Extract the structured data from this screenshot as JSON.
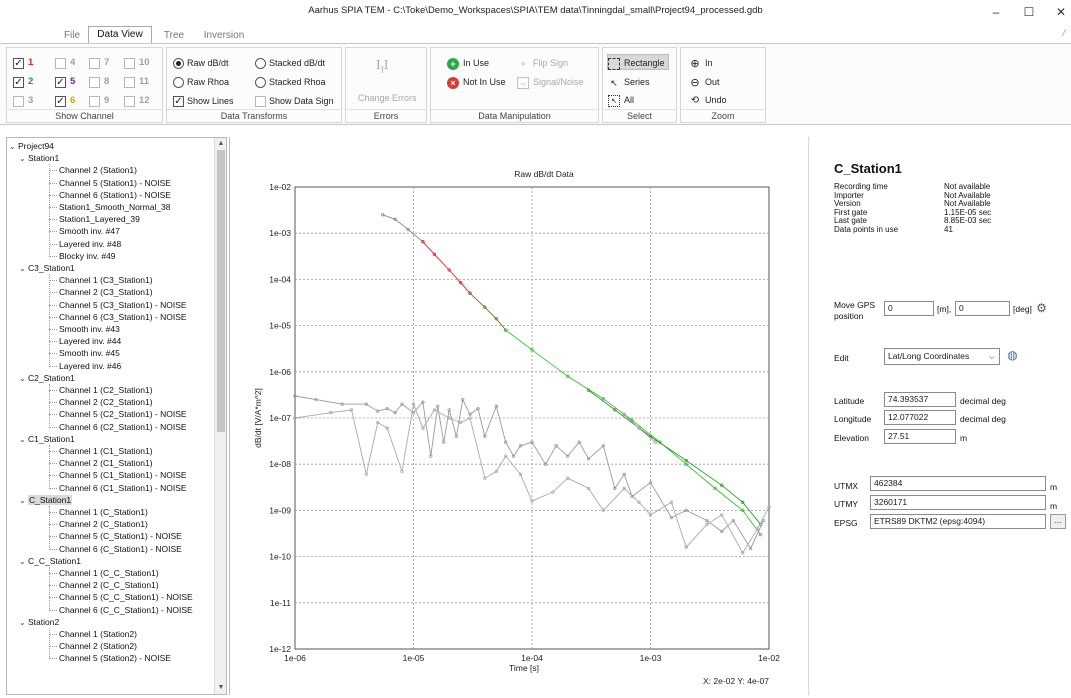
{
  "window": {
    "title": "Aarhus SPIA TEM - C:\\Toke\\Demo_Workspaces\\SPIA\\TEM data\\Tinningdal_small\\Project94_processed.gdb",
    "minimize": "–",
    "maximize": "☐",
    "close": "✕"
  },
  "tabs": [
    {
      "label": "File"
    },
    {
      "label": "Data View"
    },
    {
      "label": "Tree"
    },
    {
      "label": "Inversion"
    }
  ],
  "ribbon": {
    "show_channel": {
      "title": "Show Channel",
      "channels": [
        {
          "label": "1",
          "checked": true,
          "color": "#e02020"
        },
        {
          "label": "2",
          "checked": true,
          "color": "#20a020"
        },
        {
          "label": "3",
          "checked": false,
          "color": "#999999"
        },
        {
          "label": "4",
          "checked": false,
          "color": "#999999"
        },
        {
          "label": "5",
          "checked": true,
          "color": "#7a1fa0"
        },
        {
          "label": "6",
          "checked": true,
          "color": "#d8a000"
        },
        {
          "label": "7",
          "checked": false,
          "color": "#999999"
        },
        {
          "label": "8",
          "checked": false,
          "color": "#999999"
        },
        {
          "label": "9",
          "checked": false,
          "color": "#999999"
        },
        {
          "label": "10",
          "checked": false,
          "color": "#999999"
        },
        {
          "label": "11",
          "checked": false,
          "color": "#999999"
        },
        {
          "label": "12",
          "checked": false,
          "color": "#999999"
        }
      ]
    },
    "data_transforms": {
      "title": "Data Transforms",
      "raw_dbdt": "Raw dB/dt",
      "raw_rhoa": "Raw Rhoa",
      "show_lines": "Show Lines",
      "stacked_dbdt": "Stacked dB/dt",
      "stacked_rhoa": "Stacked Rhoa",
      "show_data_sign": "Show Data Sign"
    },
    "errors": {
      "title": "Errors",
      "change_errors": "Change Errors"
    },
    "data_manipulation": {
      "title": "Data Manipulation",
      "in_use": "In Use",
      "not_in_use": "Not In Use",
      "flip_sign": "Flip Sign",
      "signal_noise": "Signal/Noise"
    },
    "select": {
      "title": "Select",
      "rectangle": "Rectangle",
      "series": "Series",
      "all": "All"
    },
    "zoom": {
      "title": "Zoom",
      "in": "In",
      "out": "Out",
      "undo": "Undo"
    }
  },
  "tree": {
    "root": "Project94",
    "groups": [
      {
        "name": "Station1",
        "items": [
          "Channel 2 (Station1)",
          "Channel 5 (Station1) - NOISE",
          "Channel 6 (Station1) - NOISE",
          "Station1_Smooth_Normal_38",
          "Station1_Layered_39",
          "Smooth inv.  #47",
          "Layered inv.  #48",
          "Blocky inv.  #49"
        ]
      },
      {
        "name": "C3_Station1",
        "items": [
          "Channel 1 (C3_Station1)",
          "Channel 2 (C3_Station1)",
          "Channel 5 (C3_Station1) - NOISE",
          "Channel 6 (C3_Station1) - NOISE",
          "Smooth inv.  #43",
          "Layered inv.  #44",
          "Smooth inv.  #45",
          "Layered inv.  #46"
        ]
      },
      {
        "name": "C2_Station1",
        "items": [
          "Channel 1 (C2_Station1)",
          "Channel 2 (C2_Station1)",
          "Channel 5 (C2_Station1) - NOISE",
          "Channel 6 (C2_Station1) - NOISE"
        ]
      },
      {
        "name": "C1_Station1",
        "items": [
          "Channel 1 (C1_Station1)",
          "Channel 2 (C1_Station1)",
          "Channel 5 (C1_Station1) - NOISE",
          "Channel 6 (C1_Station1) - NOISE"
        ]
      },
      {
        "name": "C_Station1",
        "selected": true,
        "items": [
          "Channel 1 (C_Station1)",
          "Channel 2 (C_Station1)",
          "Channel 5 (C_Station1) - NOISE",
          "Channel 6 (C_Station1) - NOISE"
        ]
      },
      {
        "name": "C_C_Station1",
        "items": [
          "Channel 1 (C_C_Station1)",
          "Channel 2 (C_C_Station1)",
          "Channel 5 (C_C_Station1) - NOISE",
          "Channel 6 (C_C_Station1) - NOISE"
        ]
      },
      {
        "name": "Station2",
        "items": [
          "Channel 1 (Station2)",
          "Channel 2 (Station2)",
          "Channel 5 (Station2) - NOISE"
        ]
      }
    ]
  },
  "chart_data": {
    "type": "line",
    "title": "Raw dB/dt Data",
    "xlabel": "Time [s]",
    "ylabel": "dB/dt [V/A*m^2]",
    "xscale": "log",
    "yscale": "log",
    "xlim": [
      1e-06,
      0.01
    ],
    "ylim": [
      1e-12,
      0.01
    ],
    "x_ticks": [
      "1e-06",
      "1e-05",
      "1e-04",
      "1e-03",
      "1e-02"
    ],
    "y_ticks": [
      "1e-12",
      "1e-11",
      "1e-10",
      "1e-09",
      "1e-08",
      "1e-07",
      "1e-06",
      "1e-05",
      "1e-04",
      "1e-03",
      "1e-02"
    ],
    "grid": true,
    "cursor_readout": "X: 2e-02 Y: 4e-07",
    "series": [
      {
        "color": "#888888",
        "points": [
          [
            5.5e-06,
            0.0025
          ],
          [
            7e-06,
            0.002
          ],
          [
            9e-06,
            0.0012
          ],
          [
            1.2e-05,
            0.00065
          ]
        ]
      },
      {
        "color": "#e02020",
        "points": [
          [
            1.2e-05,
            0.00065
          ],
          [
            1.5e-05,
            0.00035
          ],
          [
            2e-05,
            0.00016
          ],
          [
            2.5e-05,
            8.5e-05
          ],
          [
            3e-05,
            5e-05
          ]
        ]
      },
      {
        "color": "#7a6a2a",
        "points": [
          [
            3e-05,
            5e-05
          ],
          [
            4e-05,
            2.5e-05
          ],
          [
            5e-05,
            1.4e-05
          ],
          [
            6e-05,
            8e-06
          ]
        ]
      },
      {
        "color": "#30c030",
        "points": [
          [
            6e-05,
            8e-06
          ],
          [
            0.0001,
            3e-06
          ],
          [
            0.0002,
            8e-07
          ],
          [
            0.0004,
            2.6e-07
          ],
          [
            0.0007,
            9e-08
          ],
          [
            0.0012,
            3e-08
          ],
          [
            0.002,
            1e-08
          ],
          [
            0.0035,
            3e-09
          ],
          [
            0.006,
            1e-09
          ],
          [
            0.0085,
            3e-10
          ]
        ]
      },
      {
        "color": "#2a9a2a",
        "points": [
          [
            0.0003,
            4e-07
          ],
          [
            0.0005,
            1.5e-07
          ],
          [
            0.001,
            4e-08
          ],
          [
            0.002,
            1.2e-08
          ],
          [
            0.004,
            3.5e-09
          ],
          [
            0.006,
            1.5e-09
          ],
          [
            0.0085,
            5e-10
          ]
        ]
      },
      {
        "color": "#999999",
        "points": [
          [
            0.0004,
            2.6e-07
          ],
          [
            0.0006,
            1.2e-07
          ],
          [
            0.0008,
            6e-08
          ],
          [
            0.0011,
            3e-08
          ]
        ]
      },
      {
        "color": "#9a9a9a",
        "points": [
          [
            1e-06,
            3e-07
          ],
          [
            1.5e-06,
            2.5e-07
          ],
          [
            2.5e-06,
            2e-07
          ],
          [
            4e-06,
            2e-07
          ],
          [
            5e-06,
            1.4e-07
          ],
          [
            6e-06,
            1.6e-07
          ],
          [
            7e-06,
            1.3e-07
          ],
          [
            8e-06,
            2e-07
          ],
          [
            1e-05,
            1.3e-07
          ],
          [
            1.2e-05,
            2.2e-07
          ],
          [
            1.4e-05,
            1.5e-08
          ],
          [
            1.6e-05,
            1.8e-07
          ],
          [
            1.8e-05,
            3e-08
          ],
          [
            2e-05,
            1.5e-07
          ],
          [
            2.3e-05,
            4e-08
          ],
          [
            2.6e-05,
            2.5e-07
          ],
          [
            3e-05,
            1.2e-07
          ],
          [
            3.5e-05,
            1.6e-07
          ],
          [
            4e-05,
            4e-08
          ],
          [
            5e-05,
            1.8e-07
          ],
          [
            6e-05,
            3e-08
          ],
          [
            7e-05,
            1.5e-08
          ],
          [
            8e-05,
            2.5e-08
          ],
          [
            0.0001,
            3e-08
          ],
          [
            0.00013,
            1e-08
          ],
          [
            0.00016,
            2.5e-08
          ],
          [
            0.0002,
            1.5e-08
          ],
          [
            0.00025,
            3e-08
          ],
          [
            0.0003,
            1.3e-08
          ],
          [
            0.0004,
            2.5e-08
          ],
          [
            0.0005,
            3e-09
          ],
          [
            0.0006,
            6e-09
          ],
          [
            0.0007,
            2e-09
          ],
          [
            0.001,
            4e-09
          ],
          [
            0.0015,
            7e-10
          ],
          [
            0.002,
            1e-09
          ],
          [
            0.003,
            6e-10
          ],
          [
            0.004,
            3.5e-10
          ],
          [
            0.005,
            6e-10
          ],
          [
            0.007,
            1.5e-10
          ],
          [
            0.009,
            6e-10
          ]
        ]
      },
      {
        "color": "#aaaaaa",
        "points": [
          [
            1e-06,
            1e-07
          ],
          [
            2e-06,
            1.3e-07
          ],
          [
            3e-06,
            1.5e-07
          ],
          [
            4e-06,
            6e-09
          ],
          [
            5e-06,
            8e-08
          ],
          [
            6e-06,
            6e-08
          ],
          [
            8e-06,
            7e-09
          ],
          [
            1e-05,
            2e-07
          ],
          [
            1.2e-05,
            6e-08
          ],
          [
            1.5e-05,
            1.5e-07
          ],
          [
            2e-05,
            1e-07
          ],
          [
            2.5e-05,
            8e-08
          ],
          [
            3e-05,
            1e-07
          ],
          [
            4e-05,
            5e-09
          ],
          [
            5e-05,
            7e-09
          ],
          [
            6e-05,
            1.5e-08
          ],
          [
            8e-05,
            6e-09
          ],
          [
            0.0001,
            1.6e-09
          ],
          [
            0.00015,
            2.5e-09
          ],
          [
            0.0002,
            5e-09
          ],
          [
            0.0003,
            3e-09
          ],
          [
            0.0004,
            1e-09
          ],
          [
            0.0006,
            3e-09
          ],
          [
            0.0008,
            1.5e-09
          ],
          [
            0.001,
            8e-10
          ],
          [
            0.0015,
            1.5e-09
          ],
          [
            0.002,
            1.6e-10
          ],
          [
            0.003,
            5e-10
          ],
          [
            0.004,
            8e-10
          ],
          [
            0.006,
            1.2e-10
          ],
          [
            0.008,
            4e-10
          ],
          [
            0.01,
            1.2e-09
          ]
        ]
      }
    ]
  },
  "info": {
    "station_title": "C_Station1",
    "meta": [
      {
        "label": "Recording time",
        "value": "Not available"
      },
      {
        "label": "Importer",
        "value": "Not Available"
      },
      {
        "label": "Version",
        "value": "Not Available"
      },
      {
        "label": "First gate",
        "value": "1.15E-05 sec"
      },
      {
        "label": "Last gate",
        "value": "8.85E-03 sec"
      },
      {
        "label": "Data points in use",
        "value": "41"
      }
    ],
    "move_gps_label": "Move GPS",
    "move_gps_label2": "position",
    "gps_m_value": "0",
    "gps_m_unit": "[m],",
    "gps_deg_value": "0",
    "gps_deg_unit": "[deg]",
    "edit_label": "Edit",
    "edit_value": "Lat/Long Coordinates",
    "latitude_label": "Latitude",
    "latitude_value": "74.393537",
    "latitude_unit": "decimal deg",
    "longitude_label": "Longitude",
    "longitude_value": "12.077022",
    "longitude_unit": "decimal deg",
    "elevation_label": "Elevation",
    "elevation_value": "27.51",
    "elevation_unit": "m",
    "utmx_label": "UTMX",
    "utmx_value": "462384",
    "utmx_unit": "m",
    "utmy_label": "UTMY",
    "utmy_value": "3260171",
    "utmy_unit": "m",
    "epsg_label": "EPSG",
    "epsg_value": "ETRS89 DKTM2 (epsg:4094)",
    "epsg_btn": "..."
  }
}
